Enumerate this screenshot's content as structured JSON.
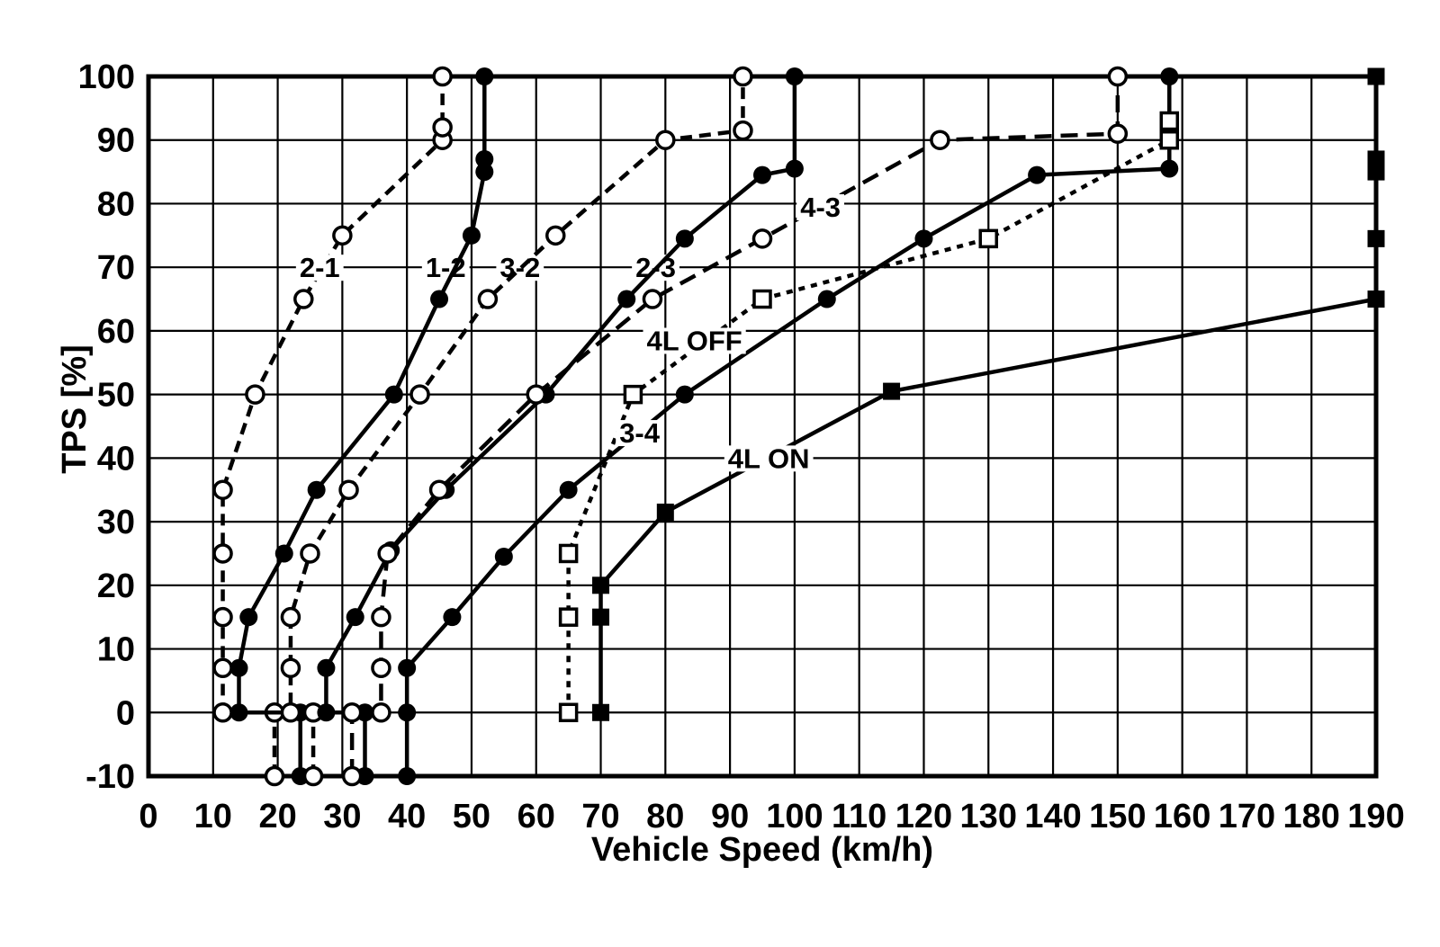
{
  "chart_data": {
    "type": "line",
    "title": "",
    "xlabel": "Vehicle Speed (km/h)",
    "ylabel": "TPS [%]",
    "xlim": [
      0,
      190
    ],
    "ylim": [
      -10,
      100
    ],
    "x_ticks": [
      0,
      10,
      20,
      30,
      40,
      50,
      60,
      70,
      80,
      90,
      100,
      110,
      120,
      130,
      140,
      150,
      160,
      170,
      180,
      190
    ],
    "y_ticks": [
      -10,
      0,
      10,
      20,
      30,
      40,
      50,
      60,
      70,
      80,
      90,
      100
    ],
    "grid": true,
    "legend_position": "none",
    "ink_color": "#000000",
    "series": [
      {
        "name": "2-1",
        "line": "dashed",
        "marker": "circle-open",
        "points": [
          [
            19.5,
            -10
          ],
          [
            19.5,
            0
          ],
          [
            11.5,
            0
          ],
          [
            11.5,
            7
          ],
          [
            11.5,
            15
          ],
          [
            11.5,
            25
          ],
          [
            11.5,
            35
          ],
          [
            16.5,
            50
          ],
          [
            24,
            65
          ],
          [
            30,
            75
          ],
          [
            45.5,
            90
          ],
          [
            45.5,
            92
          ],
          [
            45.5,
            100
          ]
        ]
      },
      {
        "name": "1-2",
        "line": "solid",
        "marker": "circle-filled",
        "points": [
          [
            23.5,
            -10
          ],
          [
            23.5,
            0
          ],
          [
            14,
            0
          ],
          [
            14,
            7
          ],
          [
            15.5,
            15
          ],
          [
            21,
            25
          ],
          [
            26,
            35
          ],
          [
            38,
            50
          ],
          [
            45,
            65
          ],
          [
            50,
            75
          ],
          [
            52,
            85
          ],
          [
            52,
            87
          ],
          [
            52,
            100
          ]
        ]
      },
      {
        "name": "3-2",
        "line": "dashed",
        "marker": "circle-open",
        "points": [
          [
            25.5,
            -10
          ],
          [
            25.5,
            0
          ],
          [
            22,
            0
          ],
          [
            22,
            7
          ],
          [
            22,
            15
          ],
          [
            25,
            25
          ],
          [
            31,
            35
          ],
          [
            42,
            50
          ],
          [
            52.5,
            65
          ],
          [
            63,
            75
          ],
          [
            80,
            90
          ],
          [
            92,
            91.5
          ],
          [
            92,
            100
          ]
        ]
      },
      {
        "name": "2-3",
        "line": "solid",
        "marker": "circle-filled",
        "points": [
          [
            33.5,
            -10
          ],
          [
            33.5,
            0
          ],
          [
            27.5,
            0
          ],
          [
            27.5,
            7
          ],
          [
            32,
            15
          ],
          [
            37.5,
            25.5
          ],
          [
            46,
            35
          ],
          [
            61.5,
            50
          ],
          [
            74,
            65
          ],
          [
            83,
            74.5
          ],
          [
            95,
            84.5
          ],
          [
            100,
            85.5
          ],
          [
            100,
            100
          ]
        ]
      },
      {
        "name": "4-3",
        "line": "dashed-long",
        "marker": "circle-open",
        "points": [
          [
            31.5,
            -10
          ],
          [
            31.5,
            0
          ],
          [
            36,
            0
          ],
          [
            36,
            7
          ],
          [
            36,
            15
          ],
          [
            37,
            25
          ],
          [
            45,
            35
          ],
          [
            60,
            50
          ],
          [
            78,
            65
          ],
          [
            95,
            74.5
          ],
          [
            122.5,
            90
          ],
          [
            150,
            91
          ],
          [
            150,
            100
          ]
        ]
      },
      {
        "name": "3-4",
        "line": "solid",
        "marker": "circle-filled",
        "points": [
          [
            40,
            -10
          ],
          [
            40,
            0
          ],
          [
            40,
            7
          ],
          [
            47,
            15
          ],
          [
            55,
            24.5
          ],
          [
            65,
            35
          ],
          [
            83,
            50
          ],
          [
            105,
            65
          ],
          [
            120,
            74.5
          ],
          [
            137.5,
            84.5
          ],
          [
            158,
            85.5
          ],
          [
            158,
            100
          ]
        ]
      },
      {
        "name": "4L OFF",
        "line": "dotted",
        "marker": "square-open",
        "points": [
          [
            65,
            0
          ],
          [
            65,
            15
          ],
          [
            65,
            25
          ],
          [
            75,
            50
          ],
          [
            95,
            65
          ],
          [
            130,
            74.5
          ],
          [
            158,
            90
          ],
          [
            158,
            93
          ]
        ]
      },
      {
        "name": "4L ON",
        "line": "solid",
        "marker": "square-filled",
        "points": [
          [
            70,
            0
          ],
          [
            70,
            15
          ],
          [
            70,
            20
          ],
          [
            80,
            31.5
          ],
          [
            115,
            50.5
          ],
          [
            190,
            65
          ],
          [
            190,
            74.5
          ],
          [
            190,
            85
          ],
          [
            190,
            87
          ],
          [
            190,
            100
          ]
        ]
      }
    ],
    "labels": [
      {
        "text": "2-1",
        "x": 26.5,
        "y": 70,
        "layer": "over"
      },
      {
        "text": "1-2",
        "x": 46,
        "y": 70,
        "layer": "under"
      },
      {
        "text": "3-2",
        "x": 57.5,
        "y": 70,
        "layer": "under"
      },
      {
        "text": "2-3",
        "x": 78.5,
        "y": 70,
        "layer": "under"
      },
      {
        "text": "4-3",
        "x": 104,
        "y": 79.5,
        "layer": "over"
      },
      {
        "text": "4L OFF",
        "x": 84.5,
        "y": 58.5,
        "layer": "over"
      },
      {
        "text": "3-4",
        "x": 76,
        "y": 44,
        "layer": "over"
      },
      {
        "text": "4L ON",
        "x": 96,
        "y": 40,
        "layer": "over"
      }
    ]
  }
}
